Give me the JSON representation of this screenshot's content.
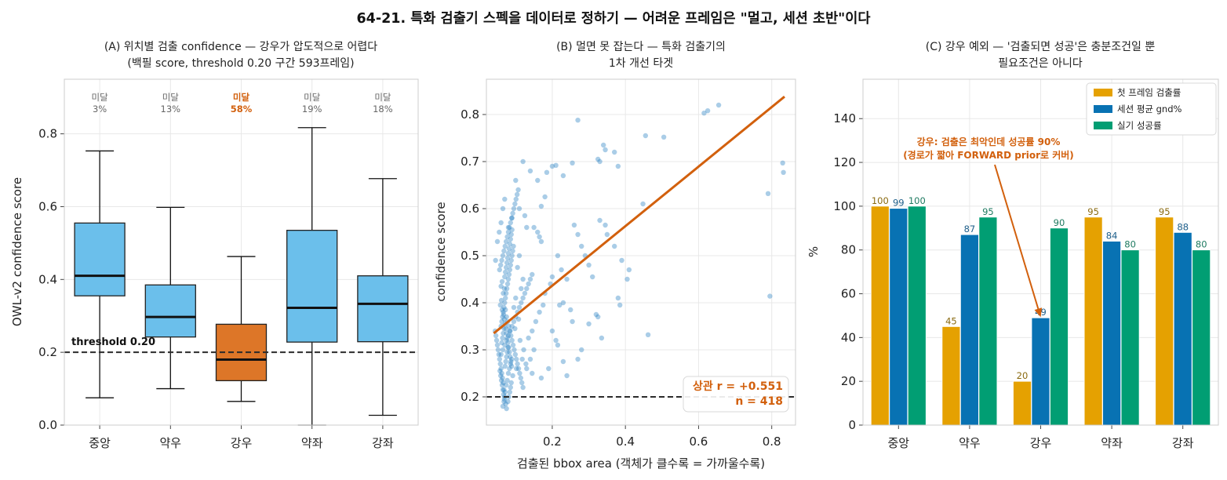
{
  "figure": {
    "suptitle": "64-21. 특화 검출기 스펙을 데이터로 정하기 — 어려운 프레임은 \"멀고, 세션 초반\"이다"
  },
  "colors": {
    "box_default": "#6bbfeb",
    "box_highlight": "#dd7628",
    "accent": "#d2600d",
    "scatter_point": "#1f7bc0",
    "bar_first": "#e5a101",
    "bar_gnd": "#0872b3",
    "bar_success": "#019e73",
    "threshold_line": "#2b2b2b",
    "grid": "#e8e8e8"
  },
  "chart_data": [
    {
      "type": "box",
      "title_line1": "(A) 위치별 검출 confidence — 강우가 압도적으로 어렵다",
      "title_line2": "(백필 score, threshold 0.20 구간 593프레임)",
      "ylabel": "OWL-v2 confidence score",
      "ylim": [
        0.0,
        0.95
      ],
      "yticks": [
        0.0,
        0.2,
        0.4,
        0.6,
        0.8
      ],
      "threshold": 0.2,
      "threshold_label": "threshold 0.20",
      "categories": [
        "중앙",
        "약우",
        "강우",
        "약좌",
        "강좌"
      ],
      "boxes": [
        {
          "whisker_low": 0.075,
          "q1": 0.355,
          "median": 0.41,
          "q3": 0.555,
          "whisker_high": 0.753,
          "highlight": false
        },
        {
          "whisker_low": 0.1,
          "q1": 0.242,
          "median": 0.297,
          "q3": 0.385,
          "whisker_high": 0.598,
          "highlight": false
        },
        {
          "whisker_low": 0.065,
          "q1": 0.122,
          "median": 0.18,
          "q3": 0.277,
          "whisker_high": 0.463,
          "highlight": true
        },
        {
          "whisker_low": 0.0,
          "q1": 0.228,
          "median": 0.322,
          "q3": 0.535,
          "whisker_high": 0.817,
          "highlight": false
        },
        {
          "whisker_low": 0.027,
          "q1": 0.229,
          "median": 0.333,
          "q3": 0.41,
          "whisker_high": 0.677,
          "highlight": false
        }
      ],
      "annotations": [
        {
          "label": "미달",
          "value": "3%",
          "highlight": false
        },
        {
          "label": "미달",
          "value": "13%",
          "highlight": false
        },
        {
          "label": "미달",
          "value": "58%",
          "highlight": true
        },
        {
          "label": "미달",
          "value": "19%",
          "highlight": false
        },
        {
          "label": "미달",
          "value": "18%",
          "highlight": false
        }
      ]
    },
    {
      "type": "scatter",
      "title_line1": "(B) 멀면 못 잡는다 — 특화 검출기의",
      "title_line2": "1차 개선 타겟",
      "xlabel": "검출된 bbox area (객체가 클수록 = 가까울수록)",
      "ylabel": "confidence score",
      "xlim": [
        0.02,
        0.865
      ],
      "ylim": [
        0.14,
        0.875
      ],
      "xticks": [
        0.2,
        0.4,
        0.6,
        0.8
      ],
      "yticks": [
        0.2,
        0.3,
        0.4,
        0.5,
        0.6,
        0.7,
        0.8
      ],
      "threshold": 0.2,
      "fit_line": {
        "x": [
          0.04,
          0.835
        ],
        "y": [
          0.335,
          0.838
        ]
      },
      "stats_line1": "상관 r = +0.551",
      "stats_line2": "n = 418",
      "points": [
        [
          0.27,
          0.788
        ],
        [
          0.625,
          0.808
        ],
        [
          0.615,
          0.803
        ],
        [
          0.655,
          0.82
        ],
        [
          0.455,
          0.755
        ],
        [
          0.505,
          0.752
        ],
        [
          0.83,
          0.697
        ],
        [
          0.832,
          0.677
        ],
        [
          0.79,
          0.632
        ],
        [
          0.795,
          0.414
        ],
        [
          0.462,
          0.332
        ],
        [
          0.448,
          0.61
        ],
        [
          0.34,
          0.735
        ],
        [
          0.345,
          0.725
        ],
        [
          0.325,
          0.705
        ],
        [
          0.33,
          0.7
        ],
        [
          0.37,
          0.72
        ],
        [
          0.38,
          0.69
        ],
        [
          0.255,
          0.697
        ],
        [
          0.21,
          0.692
        ],
        [
          0.2,
          0.69
        ],
        [
          0.185,
          0.677
        ],
        [
          0.23,
          0.67
        ],
        [
          0.14,
          0.68
        ],
        [
          0.12,
          0.7
        ],
        [
          0.1,
          0.66
        ],
        [
          0.16,
          0.66
        ],
        [
          0.18,
          0.625
        ],
        [
          0.17,
          0.605
        ],
        [
          0.15,
          0.56
        ],
        [
          0.16,
          0.55
        ],
        [
          0.165,
          0.54
        ],
        [
          0.17,
          0.53
        ],
        [
          0.11,
          0.6
        ],
        [
          0.125,
          0.585
        ],
        [
          0.13,
          0.56
        ],
        [
          0.09,
          0.58
        ],
        [
          0.08,
          0.56
        ],
        [
          0.07,
          0.62
        ],
        [
          0.065,
          0.6
        ],
        [
          0.06,
          0.57
        ],
        [
          0.055,
          0.55
        ],
        [
          0.05,
          0.53
        ],
        [
          0.045,
          0.49
        ],
        [
          0.26,
          0.565
        ],
        [
          0.27,
          0.545
        ],
        [
          0.28,
          0.52
        ],
        [
          0.29,
          0.5
        ],
        [
          0.3,
          0.48
        ],
        [
          0.31,
          0.455
        ],
        [
          0.33,
          0.575
        ],
        [
          0.345,
          0.565
        ],
        [
          0.35,
          0.545
        ],
        [
          0.37,
          0.52
        ],
        [
          0.39,
          0.49
        ],
        [
          0.41,
          0.47
        ],
        [
          0.38,
          0.41
        ],
        [
          0.385,
          0.395
        ],
        [
          0.405,
          0.45
        ],
        [
          0.215,
          0.5
        ],
        [
          0.225,
          0.47
        ],
        [
          0.24,
          0.45
        ],
        [
          0.23,
          0.4
        ],
        [
          0.22,
          0.395
        ],
        [
          0.25,
          0.385
        ],
        [
          0.2,
          0.455
        ],
        [
          0.195,
          0.44
        ],
        [
          0.18,
          0.42
        ],
        [
          0.175,
          0.395
        ],
        [
          0.165,
          0.38
        ],
        [
          0.155,
          0.36
        ],
        [
          0.145,
          0.34
        ],
        [
          0.135,
          0.325
        ],
        [
          0.15,
          0.3
        ],
        [
          0.14,
          0.28
        ],
        [
          0.13,
          0.26
        ],
        [
          0.145,
          0.25
        ],
        [
          0.2,
          0.34
        ],
        [
          0.21,
          0.32
        ],
        [
          0.215,
          0.31
        ],
        [
          0.23,
          0.275
        ],
        [
          0.24,
          0.245
        ],
        [
          0.19,
          0.26
        ],
        [
          0.17,
          0.24
        ],
        [
          0.32,
          0.375
        ],
        [
          0.325,
          0.37
        ],
        [
          0.3,
          0.355
        ],
        [
          0.335,
          0.325
        ],
        [
          0.28,
          0.3
        ],
        [
          0.27,
          0.28
        ],
        [
          0.255,
          0.36
        ],
        [
          0.11,
          0.5
        ],
        [
          0.105,
          0.475
        ],
        [
          0.12,
          0.45
        ],
        [
          0.115,
          0.43
        ],
        [
          0.1,
          0.41
        ],
        [
          0.095,
          0.39
        ],
        [
          0.108,
          0.365
        ],
        [
          0.098,
          0.345
        ],
        [
          0.112,
          0.32
        ],
        [
          0.122,
          0.3
        ],
        [
          0.118,
          0.28
        ],
        [
          0.128,
          0.27
        ],
        [
          0.102,
          0.26
        ],
        [
          0.092,
          0.245
        ],
        [
          0.088,
          0.23
        ],
        [
          0.086,
          0.22
        ],
        [
          0.084,
          0.21
        ],
        [
          0.081,
          0.2
        ],
        [
          0.079,
          0.19
        ],
        [
          0.075,
          0.175
        ],
        [
          0.073,
          0.185
        ],
        [
          0.07,
          0.2
        ],
        [
          0.068,
          0.215
        ],
        [
          0.066,
          0.23
        ],
        [
          0.064,
          0.24
        ],
        [
          0.062,
          0.25
        ],
        [
          0.06,
          0.26
        ],
        [
          0.058,
          0.27
        ],
        [
          0.056,
          0.28
        ],
        [
          0.054,
          0.29
        ],
        [
          0.052,
          0.3
        ],
        [
          0.05,
          0.31
        ],
        [
          0.048,
          0.32
        ],
        [
          0.046,
          0.33
        ],
        [
          0.044,
          0.34
        ],
        [
          0.06,
          0.35
        ],
        [
          0.062,
          0.36
        ],
        [
          0.064,
          0.37
        ],
        [
          0.066,
          0.38
        ],
        [
          0.068,
          0.39
        ],
        [
          0.07,
          0.4
        ],
        [
          0.072,
          0.41
        ],
        [
          0.074,
          0.42
        ],
        [
          0.076,
          0.43
        ],
        [
          0.078,
          0.44
        ],
        [
          0.08,
          0.45
        ],
        [
          0.082,
          0.46
        ],
        [
          0.084,
          0.47
        ],
        [
          0.086,
          0.48
        ],
        [
          0.088,
          0.49
        ],
        [
          0.09,
          0.5
        ],
        [
          0.092,
          0.51
        ],
        [
          0.094,
          0.52
        ],
        [
          0.058,
          0.395
        ],
        [
          0.061,
          0.405
        ],
        [
          0.063,
          0.385
        ],
        [
          0.067,
          0.375
        ],
        [
          0.069,
          0.365
        ],
        [
          0.071,
          0.355
        ],
        [
          0.073,
          0.345
        ],
        [
          0.075,
          0.335
        ],
        [
          0.077,
          0.325
        ],
        [
          0.079,
          0.315
        ],
        [
          0.081,
          0.305
        ],
        [
          0.083,
          0.295
        ],
        [
          0.085,
          0.285
        ],
        [
          0.087,
          0.275
        ],
        [
          0.089,
          0.265
        ],
        [
          0.057,
          0.255
        ],
        [
          0.059,
          0.245
        ],
        [
          0.061,
          0.235
        ],
        [
          0.063,
          0.225
        ],
        [
          0.065,
          0.215
        ],
        [
          0.067,
          0.205
        ],
        [
          0.069,
          0.195
        ],
        [
          0.071,
          0.265
        ],
        [
          0.073,
          0.275
        ],
        [
          0.075,
          0.285
        ],
        [
          0.077,
          0.295
        ],
        [
          0.079,
          0.305
        ],
        [
          0.062,
          0.315
        ],
        [
          0.064,
          0.325
        ],
        [
          0.066,
          0.335
        ],
        [
          0.068,
          0.345
        ],
        [
          0.07,
          0.455
        ],
        [
          0.072,
          0.465
        ],
        [
          0.074,
          0.475
        ],
        [
          0.076,
          0.485
        ],
        [
          0.078,
          0.495
        ],
        [
          0.08,
          0.505
        ],
        [
          0.082,
          0.515
        ],
        [
          0.084,
          0.525
        ],
        [
          0.086,
          0.535
        ],
        [
          0.088,
          0.545
        ],
        [
          0.09,
          0.555
        ],
        [
          0.06,
          0.435
        ],
        [
          0.063,
          0.445
        ],
        [
          0.066,
          0.42
        ],
        [
          0.069,
          0.43
        ],
        [
          0.072,
          0.385
        ],
        [
          0.075,
          0.37
        ],
        [
          0.078,
          0.36
        ],
        [
          0.081,
          0.35
        ],
        [
          0.084,
          0.34
        ],
        [
          0.087,
          0.33
        ],
        [
          0.09,
          0.32
        ],
        [
          0.093,
          0.31
        ],
        [
          0.096,
          0.3
        ],
        [
          0.099,
          0.29
        ],
        [
          0.102,
          0.28
        ],
        [
          0.105,
          0.27
        ],
        [
          0.108,
          0.26
        ],
        [
          0.111,
          0.25
        ],
        [
          0.114,
          0.24
        ],
        [
          0.117,
          0.23
        ],
        [
          0.12,
          0.22
        ],
        [
          0.065,
          0.18
        ],
        [
          0.068,
          0.19
        ],
        [
          0.071,
          0.21
        ],
        [
          0.074,
          0.225
        ],
        [
          0.077,
          0.235
        ],
        [
          0.08,
          0.25
        ],
        [
          0.083,
          0.26
        ],
        [
          0.086,
          0.27
        ],
        [
          0.089,
          0.28
        ],
        [
          0.06,
          0.29
        ],
        [
          0.065,
          0.3
        ],
        [
          0.07,
          0.31
        ],
        [
          0.075,
          0.32
        ],
        [
          0.08,
          0.33
        ],
        [
          0.085,
          0.34
        ],
        [
          0.09,
          0.35
        ],
        [
          0.095,
          0.36
        ],
        [
          0.1,
          0.37
        ],
        [
          0.105,
          0.38
        ],
        [
          0.11,
          0.39
        ],
        [
          0.115,
          0.4
        ],
        [
          0.12,
          0.41
        ],
        [
          0.125,
          0.42
        ],
        [
          0.13,
          0.43
        ],
        [
          0.135,
          0.44
        ],
        [
          0.14,
          0.45
        ],
        [
          0.145,
          0.46
        ],
        [
          0.056,
          0.47
        ],
        [
          0.059,
          0.48
        ],
        [
          0.062,
          0.49
        ],
        [
          0.065,
          0.5
        ],
        [
          0.068,
          0.51
        ],
        [
          0.071,
          0.52
        ],
        [
          0.074,
          0.53
        ],
        [
          0.077,
          0.54
        ],
        [
          0.08,
          0.55
        ],
        [
          0.083,
          0.56
        ],
        [
          0.086,
          0.57
        ],
        [
          0.089,
          0.58
        ],
        [
          0.092,
          0.59
        ],
        [
          0.095,
          0.6
        ],
        [
          0.098,
          0.61
        ],
        [
          0.101,
          0.62
        ],
        [
          0.104,
          0.63
        ],
        [
          0.107,
          0.64
        ]
      ]
    },
    {
      "type": "bar",
      "title_line1": "(C) 강우 예외 — '검출되면 성공'은 충분조건일 뿐",
      "title_line2": "필요조건은 아니다",
      "ylabel": "%",
      "ylim": [
        0,
        158
      ],
      "yticks": [
        0,
        20,
        40,
        60,
        80,
        100,
        120,
        140
      ],
      "categories": [
        "중앙",
        "약우",
        "강우",
        "약좌",
        "강좌"
      ],
      "series": [
        {
          "name": "첫 프레임 검출률",
          "values": [
            100,
            45,
            20,
            95,
            95
          ]
        },
        {
          "name": "세션 평균 gnd%",
          "values": [
            99,
            87,
            49,
            84,
            88
          ]
        },
        {
          "name": "실기 성공률",
          "values": [
            100,
            95,
            90,
            80,
            80
          ]
        }
      ],
      "legend_position": "upper right",
      "annotation_line1": "강우: 검출은 최악인데 성공률 90%",
      "annotation_line2": "(경로가 짧아 FORWARD prior로 커버)",
      "annotation_target": {
        "category": "강우",
        "value": 49
      }
    }
  ]
}
